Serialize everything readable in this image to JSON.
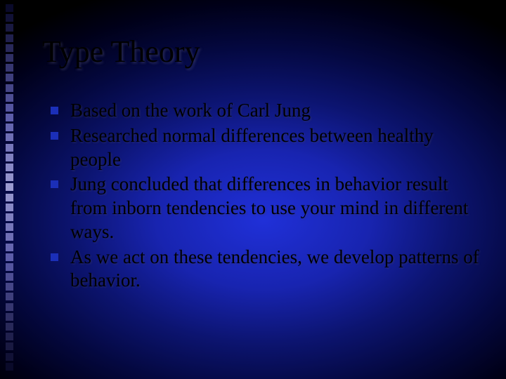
{
  "slide": {
    "title": "Type Theory",
    "title_color": "#000000",
    "title_fontsize": 44,
    "body_fontsize": 27,
    "body_color": "#000000",
    "bullet_marker_color": "#1b2fb8",
    "bullets": [
      {
        "text": "Based on the work of Carl Jung"
      },
      {
        "text": "Researched normal differences between healthy people"
      },
      {
        "text": "Jung concluded that differences in behavior result from inborn tendencies to use your mind in different ways."
      },
      {
        "text": "As we act on these tendencies, we develop patterns of behavior."
      }
    ],
    "background": {
      "type": "radial-gradient",
      "center_color": "#2030d8",
      "outer_color": "#000000"
    },
    "left_decoration": {
      "square_size": 11,
      "gap": 3.2,
      "count": 37,
      "gradient_top": "#0a0a2a",
      "gradient_mid_upper": "#5a5aa8",
      "gradient_mid": "#9a9ad0",
      "gradient_mid_lower": "#5a5aa8",
      "gradient_bottom": "#0a0a2a"
    }
  }
}
